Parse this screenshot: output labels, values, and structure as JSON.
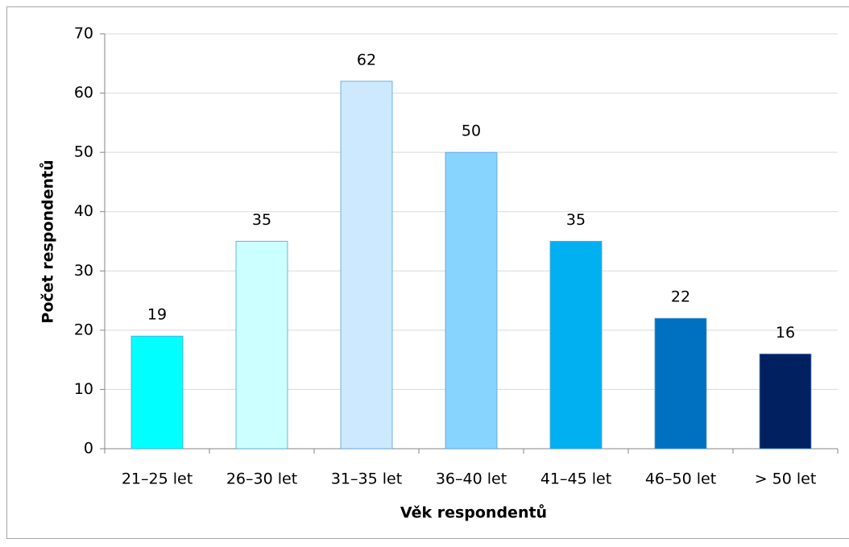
{
  "chart_data": {
    "type": "bar",
    "categories": [
      "21–25 let",
      "26–30 let",
      "31–35 let",
      "36–40 let",
      "41–45 let",
      "46–50 let",
      "> 50 let"
    ],
    "values": [
      19,
      35,
      62,
      50,
      35,
      22,
      16
    ],
    "colors": [
      "#00ffff",
      "#ccffff",
      "#cce9ff",
      "#87d4ff",
      "#00b0f0",
      "#0070c0",
      "#002060"
    ],
    "xlabel": "Věk respondentů",
    "ylabel": "Počet respondentů",
    "ylim": [
      0,
      70
    ],
    "yticks": [
      0,
      10,
      20,
      30,
      40,
      50,
      60,
      70
    ],
    "grid": true
  }
}
